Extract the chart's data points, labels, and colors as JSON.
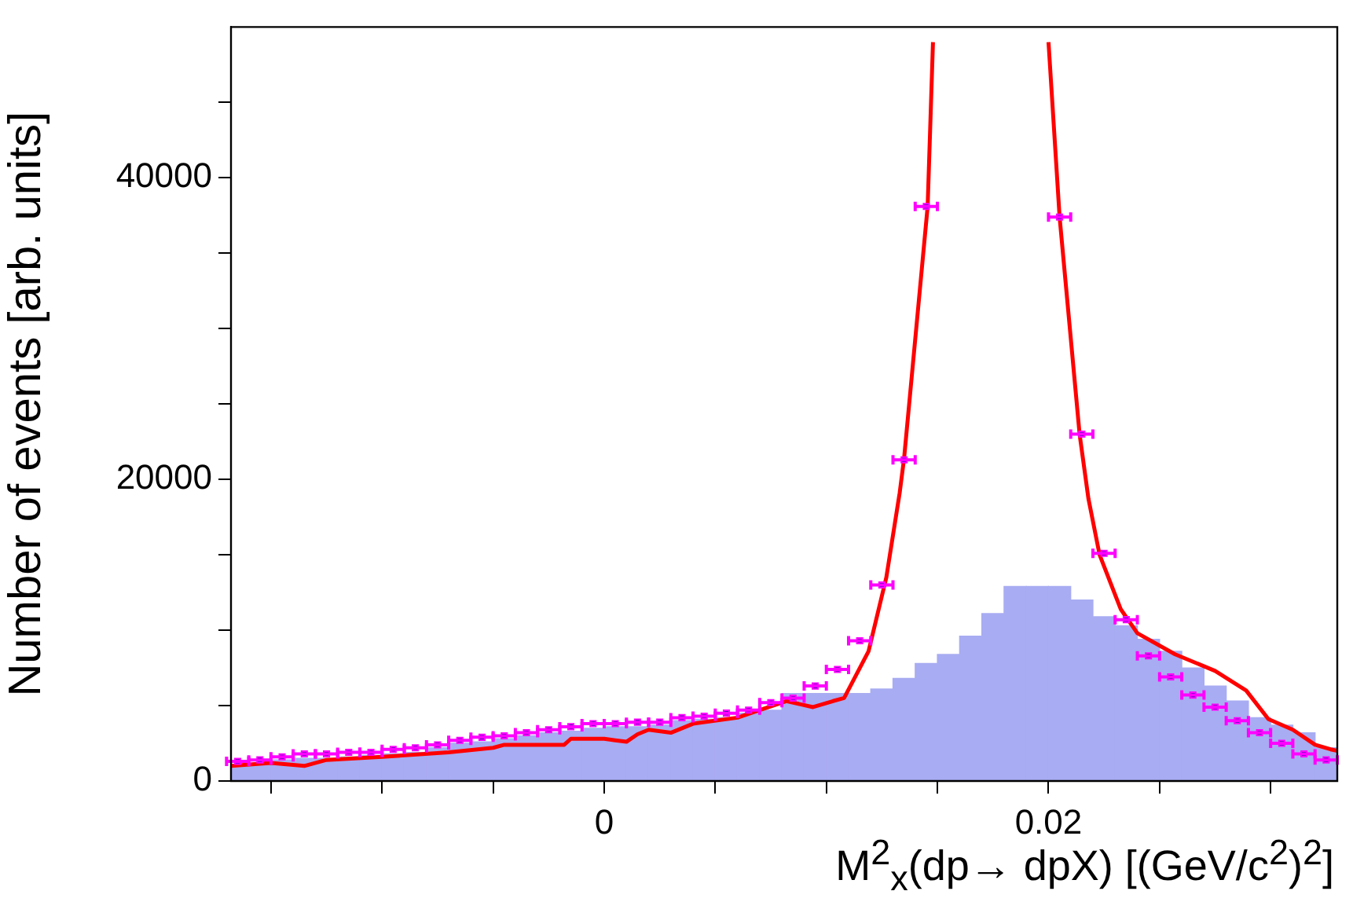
{
  "chart_data": {
    "type": "histogram",
    "xlabel": "M$^{2}$$_{x}$(dp→ dpX) [(GeV/c$^{2}$)$^{2}$]",
    "ylabel": "Number of events [arb. units]",
    "xlim": [
      -0.0168,
      0.033
    ],
    "ylim": [
      0,
      50000
    ],
    "xticks": [
      {
        "value": -0.015,
        "label": null
      },
      {
        "value": -0.01,
        "label": null
      },
      {
        "value": -0.005,
        "label": null
      },
      0,
      {
        "value": 0.005,
        "label": null
      },
      {
        "value": 0.01,
        "label": null
      },
      {
        "value": 0.015,
        "label": null
      },
      0.02,
      {
        "value": 0.025,
        "label": null
      },
      {
        "value": 0.03,
        "label": null
      }
    ],
    "yticks": [
      0,
      {
        "value": 5000,
        "label": null
      },
      {
        "value": 10000,
        "label": null
      },
      {
        "value": 15000,
        "label": null
      },
      20000,
      {
        "value": 25000,
        "label": null
      },
      {
        "value": 30000,
        "label": null
      },
      {
        "value": 35000,
        "label": null
      },
      40000,
      {
        "value": 45000,
        "label": null
      }
    ],
    "grid": false,
    "legend": false,
    "marker": "square",
    "line_style": "solid",
    "series": [
      {
        "color": "#a8acf2",
        "bins": [
          -0.017,
          -0.016,
          -0.015,
          -0.014,
          -0.013,
          -0.012,
          -0.011,
          -0.01,
          -0.009,
          -0.008,
          -0.007,
          -0.006,
          -0.005,
          -0.004,
          -0.003,
          -0.002,
          -0.001,
          0,
          0.001,
          0.002,
          0.003,
          0.004,
          0.005,
          0.006,
          0.007,
          0.008,
          0.009,
          0.01,
          0.011,
          0.012,
          0.013,
          0.014,
          0.015,
          0.016,
          0.017,
          0.018,
          0.019,
          0.02,
          0.021,
          0.022,
          0.023,
          0.024,
          0.025,
          0.026,
          0.027,
          0.028,
          0.029,
          0.03,
          0.031,
          0.032,
          0.033
        ],
        "values": [
          1100,
          1200,
          1400,
          1500,
          1500,
          1600,
          1700,
          1800,
          1900,
          2200,
          2500,
          2600,
          2800,
          3000,
          3200,
          3300,
          3500,
          3600,
          3600,
          3700,
          4000,
          4100,
          4200,
          4500,
          4700,
          5800,
          5800,
          5800,
          5800,
          6100,
          6800,
          7800,
          8400,
          9600,
          11100,
          12900,
          12900,
          12900,
          12000,
          10900,
          10300,
          9400,
          8600,
          7500,
          6300,
          5300,
          4200,
          3700,
          3200,
          2200
        ]
      },
      {
        "type": "line",
        "color": "#ff0000",
        "marker": "none",
        "x": [
          -0.0168,
          -0.015,
          -0.0142,
          -0.0135,
          -0.0125,
          -0.01,
          -0.007,
          -0.005,
          -0.0045,
          -0.0018,
          -0.0015,
          0,
          0.0005,
          0.001,
          0.0015,
          0.002,
          0.003,
          0.004,
          0.006,
          0.0068,
          0.0082,
          0.0094,
          0.0103,
          0.0108,
          0.0119,
          0.0127,
          0.0133,
          0.0135,
          0.01456,
          0.0148,
          0.0175,
          0.02,
          0.0205,
          0.0214,
          0.0218,
          0.0223,
          0.02325,
          0.024,
          0.0257,
          0.0275,
          0.0289,
          0.0299,
          0.031,
          0.032,
          0.0327,
          0.033
        ],
        "values": [
          1000,
          1200,
          1100,
          1000,
          1400,
          1600,
          1900,
          2200,
          2400,
          2400,
          2800,
          2800,
          2700,
          2600,
          3100,
          3400,
          3200,
          3800,
          4200,
          4600,
          5300,
          4900,
          5300,
          5500,
          8600,
          13500,
          19100,
          21400,
          38100,
          49000,
          null,
          49000,
          37400,
          23000,
          18700,
          15000,
          11400,
          9800,
          8400,
          7300,
          6000,
          4100,
          3400,
          2400,
          2100,
          2000
        ]
      },
      {
        "type": "scatter",
        "color": "#ff00ff",
        "x": [
          -0.0165,
          -0.0155,
          -0.0145,
          -0.0135,
          -0.0125,
          -0.0115,
          -0.0105,
          -0.0095,
          -0.0085,
          -0.0075,
          -0.0065,
          -0.0055,
          -0.0045,
          -0.0035,
          -0.0025,
          -0.0015,
          -0.0005,
          0.0005,
          0.0015,
          0.0025,
          0.0035,
          0.0045,
          0.0055,
          0.0065,
          0.0075,
          0.0085,
          0.0095,
          0.0105,
          0.0115,
          0.0125,
          0.0135,
          0.0145,
          0.0155,
          0.0165,
          0.0175,
          0.0185,
          0.0195,
          0.0205,
          0.0215,
          0.0225,
          0.0235,
          0.0245,
          0.0255,
          0.0265,
          0.0275,
          0.0285,
          0.0295,
          0.0305,
          0.0315,
          0.0325
        ],
        "values": [
          1300,
          1400,
          1600,
          1800,
          1800,
          1900,
          1900,
          2100,
          2200,
          2400,
          2700,
          2900,
          3000,
          3200,
          3400,
          3600,
          3800,
          3800,
          3900,
          3900,
          4200,
          4300,
          4500,
          4700,
          5200,
          5500,
          6300,
          7400,
          9300,
          13000,
          21300,
          38100,
          null,
          null,
          null,
          null,
          null,
          37400,
          23000,
          15100,
          10700,
          8300,
          6900,
          5700,
          4900,
          4000,
          3200,
          2500,
          1800,
          1400
        ],
        "xerrors": [
          0.0005,
          0.0005,
          0.0005,
          0.0005,
          0.0005,
          0.0005,
          0.0005,
          0.0005,
          0.0005,
          0.0005,
          0.0005,
          0.0005,
          0.0005,
          0.0005,
          0.0005,
          0.0005,
          0.0005,
          0.0005,
          0.0005,
          0.0005,
          0.0005,
          0.0005,
          0.0005,
          0.0005,
          0.0005,
          0.0005,
          0.0005,
          0.0005,
          0.0005,
          0.0005,
          0.0005,
          0.0005,
          null,
          null,
          null,
          null,
          null,
          0.0005,
          0.0005,
          0.0005,
          0.0005,
          0.0005,
          0.0005,
          0.0005,
          0.0005,
          0.0005,
          0.0005,
          0.0005,
          0.0005,
          0.0005
        ]
      }
    ]
  }
}
